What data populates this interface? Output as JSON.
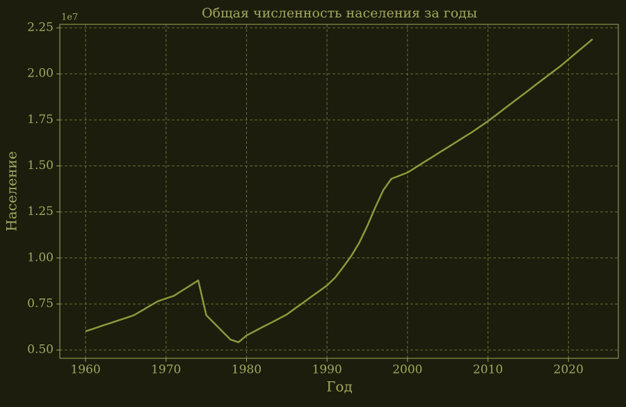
{
  "chart_data": {
    "type": "line",
    "title": "Общая численность населения за годы",
    "xlabel": "Год",
    "ylabel": "Население",
    "offset_label": "1e7",
    "x": [
      1960,
      1961,
      1962,
      1963,
      1964,
      1965,
      1966,
      1967,
      1968,
      1969,
      1970,
      1971,
      1972,
      1973,
      1974,
      1975,
      1976,
      1977,
      1978,
      1979,
      1980,
      1981,
      1982,
      1983,
      1984,
      1985,
      1986,
      1987,
      1988,
      1989,
      1990,
      1991,
      1992,
      1993,
      1994,
      1995,
      1996,
      1997,
      1998,
      1999,
      2000,
      2001,
      2002,
      2003,
      2004,
      2005,
      2006,
      2007,
      2008,
      2009,
      2010,
      2011,
      2012,
      2013,
      2014,
      2015,
      2016,
      2017,
      2018,
      2019,
      2020,
      2021,
      2022,
      2023
    ],
    "series": [
      {
        "name": "Население",
        "color": "#8c9a3c",
        "values": [
          6020000,
          6160000,
          6310000,
          6450000,
          6600000,
          6740000,
          6890000,
          7140000,
          7400000,
          7650000,
          7800000,
          7950000,
          8230000,
          8500000,
          8780000,
          6890000,
          6450000,
          6010000,
          5570000,
          5420000,
          5790000,
          6020000,
          6250000,
          6470000,
          6700000,
          6930000,
          7250000,
          7560000,
          7880000,
          8190000,
          8510000,
          8930000,
          9500000,
          10100000,
          10820000,
          11730000,
          12750000,
          13690000,
          14300000,
          14470000,
          14640000,
          14910000,
          15190000,
          15460000,
          15740000,
          16010000,
          16280000,
          16560000,
          16830000,
          17130000,
          17430000,
          17760000,
          18100000,
          18430000,
          18760000,
          19090000,
          19430000,
          19760000,
          20090000,
          20420000,
          20790000,
          21160000,
          21520000,
          21890000
        ]
      }
    ],
    "xlim": [
      1956.8,
      2026.2
    ],
    "xticks": [
      1960,
      1970,
      1980,
      1990,
      2000,
      2010,
      2020
    ],
    "ylim": [
      4550000,
      22690000
    ],
    "yticks": [
      {
        "value": 5000000,
        "label": "0.50"
      },
      {
        "value": 7500000,
        "label": "0.75"
      },
      {
        "value": 10000000,
        "label": "1.00"
      },
      {
        "value": 12500000,
        "label": "1.25"
      },
      {
        "value": 15000000,
        "label": "1.50"
      },
      {
        "value": 17500000,
        "label": "1.75"
      },
      {
        "value": 20000000,
        "label": "2.00"
      },
      {
        "value": 22500000,
        "label": "2.25"
      }
    ],
    "grid": true
  }
}
